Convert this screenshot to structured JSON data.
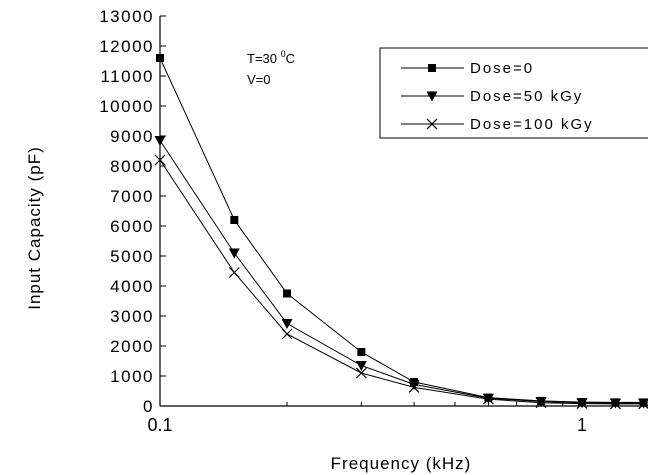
{
  "chart_data": {
    "type": "line",
    "xscale": "log",
    "xlim": [
      0.1,
      1.45
    ],
    "ylim": [
      0,
      13000
    ],
    "yticks": [
      0,
      1000,
      2000,
      3000,
      4000,
      5000,
      6000,
      7000,
      8000,
      9000,
      10000,
      11000,
      12000,
      13000
    ],
    "xticks": [
      0.1,
      1
    ],
    "xtick_labels": [
      "0.1",
      "1"
    ],
    "xlabel": "Frequency (kHz)",
    "ylabel": "Input Capacity (pF)",
    "grid": false,
    "legend_position": "top-right",
    "annotation": {
      "line1": "T=30 ",
      "sup": "0",
      "unit": "C",
      "line2": "V=0"
    },
    "x": [
      0.1,
      0.15,
      0.2,
      0.3,
      0.4,
      0.6,
      0.8,
      1.0,
      1.2,
      1.4
    ],
    "series": [
      {
        "name": "Dose=0",
        "marker": "square",
        "values": [
          11600,
          6200,
          3750,
          1800,
          800,
          280,
          170,
          130,
          120,
          120
        ]
      },
      {
        "name": "Dose=50 kGy",
        "marker": "triangle-down",
        "values": [
          8850,
          5100,
          2750,
          1350,
          720,
          260,
          150,
          110,
          100,
          100
        ]
      },
      {
        "name": "Dose=100 kGy",
        "marker": "x",
        "values": [
          8200,
          4450,
          2400,
          1100,
          620,
          230,
          110,
          80,
          70,
          70
        ]
      }
    ]
  }
}
